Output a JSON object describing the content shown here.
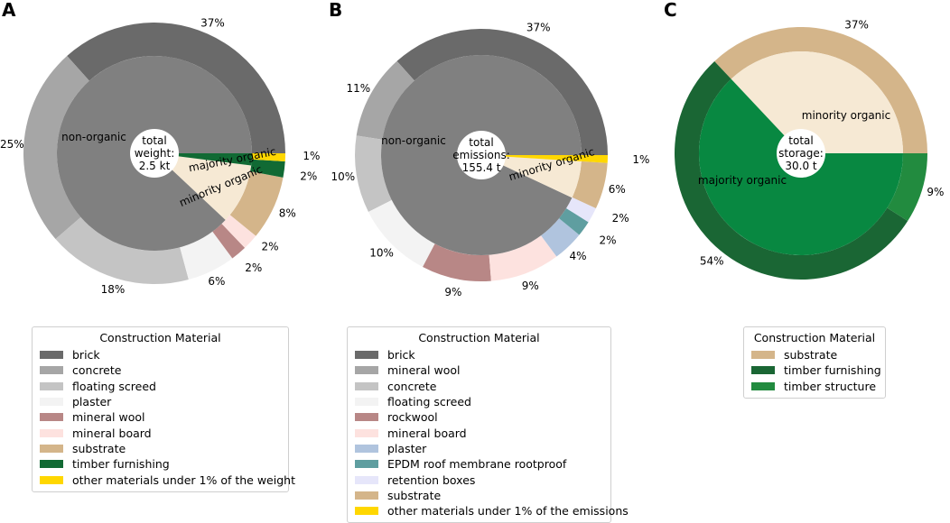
{
  "chart_data": [
    {
      "type": "pie",
      "panel": "A",
      "center_text": [
        "total",
        "weight:",
        "2.5 kt"
      ],
      "inner": [
        {
          "label": "non-organic",
          "value": 88,
          "color": "#808080"
        },
        {
          "label": "minority organic",
          "value": 10,
          "color": "#f6e9d4"
        },
        {
          "label": "majority organic",
          "value": 2,
          "color": "#116a34"
        }
      ],
      "outer": [
        {
          "material": "brick",
          "value": 37,
          "label": "37%",
          "color": "#6a6a6a"
        },
        {
          "material": "concrete",
          "value": 25,
          "label": "25%",
          "color": "#a6a6a6"
        },
        {
          "material": "floating screed",
          "value": 18,
          "label": "18%",
          "color": "#c4c4c4"
        },
        {
          "material": "plaster",
          "value": 6,
          "label": "6%",
          "color": "#f3f3f3"
        },
        {
          "material": "mineral wool",
          "value": 2,
          "label": "2%",
          "color": "#b88786"
        },
        {
          "material": "mineral board",
          "value": 2,
          "label": "2%",
          "color": "#fde2df"
        },
        {
          "material": "substrate",
          "value": 8,
          "label": "8%",
          "color": "#d4b58a"
        },
        {
          "material": "timber furnishing",
          "value": 2,
          "label": "2%",
          "color": "#116a34"
        },
        {
          "material": "other materials under 1% of the weight",
          "value": 1,
          "label": "1%",
          "color": "#ffd700"
        }
      ],
      "legend_title": "Construction Material",
      "legend": [
        {
          "label": "brick",
          "color": "#6a6a6a"
        },
        {
          "label": "concrete",
          "color": "#a6a6a6"
        },
        {
          "label": "floating screed",
          "color": "#c4c4c4"
        },
        {
          "label": "plaster",
          "color": "#f3f3f3"
        },
        {
          "label": "mineral wool",
          "color": "#b88786"
        },
        {
          "label": "mineral board",
          "color": "#fde2df"
        },
        {
          "label": "substrate",
          "color": "#d4b58a"
        },
        {
          "label": "timber furnishing",
          "color": "#116a34"
        },
        {
          "label": "other materials under 1% of the weight",
          "color": "#ffd700"
        }
      ]
    },
    {
      "type": "pie",
      "panel": "B",
      "center_text": [
        "total",
        "emissions:",
        "155.4 t"
      ],
      "inner": [
        {
          "label": "non-organic",
          "value": 93,
          "color": "#808080"
        },
        {
          "label": "minority organic",
          "value": 6,
          "color": "#f6e9d4"
        },
        {
          "label": "",
          "value": 1,
          "color": "#ffd700"
        }
      ],
      "outer": [
        {
          "material": "brick",
          "value": 37,
          "label": "37%",
          "color": "#6a6a6a"
        },
        {
          "material": "mineral wool",
          "value": 11,
          "label": "11%",
          "color": "#a6a6a6"
        },
        {
          "material": "concrete",
          "value": 10,
          "label": "10%",
          "color": "#c4c4c4"
        },
        {
          "material": "floating screed",
          "value": 10,
          "label": "10%",
          "color": "#f3f3f3"
        },
        {
          "material": "rockwool",
          "value": 9,
          "label": "9%",
          "color": "#b88786"
        },
        {
          "material": "mineral board",
          "value": 9,
          "label": "9%",
          "color": "#fde2df"
        },
        {
          "material": "plaster",
          "value": 4,
          "label": "4%",
          "color": "#b0c4de"
        },
        {
          "material": "EPDM roof membrane rootproof",
          "value": 2,
          "label": "2%",
          "color": "#5f9ea0"
        },
        {
          "material": "retention boxes",
          "value": 2,
          "label": "2%",
          "color": "#e6e6fa"
        },
        {
          "material": "substrate",
          "value": 6,
          "label": "6%",
          "color": "#d4b58a"
        },
        {
          "material": "other materials under 1% of the emissions",
          "value": 1,
          "label": "1%",
          "color": "#ffd700"
        }
      ],
      "legend_title": "Construction Material",
      "legend": [
        {
          "label": "brick",
          "color": "#6a6a6a"
        },
        {
          "label": "mineral wool",
          "color": "#a6a6a6"
        },
        {
          "label": "concrete",
          "color": "#c4c4c4"
        },
        {
          "label": "floating screed",
          "color": "#f3f3f3"
        },
        {
          "label": "rockwool",
          "color": "#b88786"
        },
        {
          "label": "mineral board",
          "color": "#fde2df"
        },
        {
          "label": "plaster",
          "color": "#b0c4de"
        },
        {
          "label": "EPDM roof membrane rootproof",
          "color": "#5f9ea0"
        },
        {
          "label": "retention boxes",
          "color": "#e6e6fa"
        },
        {
          "label": "substrate",
          "color": "#d4b58a"
        },
        {
          "label": "other materials under 1% of the emissions",
          "color": "#ffd700"
        }
      ]
    },
    {
      "type": "pie",
      "panel": "C",
      "center_text": [
        "total",
        "storage:",
        "30.0 t"
      ],
      "inner": [
        {
          "label": "minority organic",
          "value": 37,
          "color": "#f6e9d4"
        },
        {
          "label": "majority organic",
          "value": 63,
          "color": "#088841"
        }
      ],
      "outer": [
        {
          "material": "substrate",
          "value": 37,
          "label": "37%",
          "color": "#d4b58a"
        },
        {
          "material": "timber furnishing",
          "value": 54,
          "label": "54%",
          "color": "#1a6634"
        },
        {
          "material": "timber structure",
          "value": 9,
          "label": "9%",
          "color": "#228b3f"
        }
      ],
      "legend_title": "Construction Material",
      "legend": [
        {
          "label": "substrate",
          "color": "#d4b58a"
        },
        {
          "label": "timber furnishing",
          "color": "#1a6634"
        },
        {
          "label": "timber structure",
          "color": "#228b3f"
        }
      ]
    }
  ]
}
